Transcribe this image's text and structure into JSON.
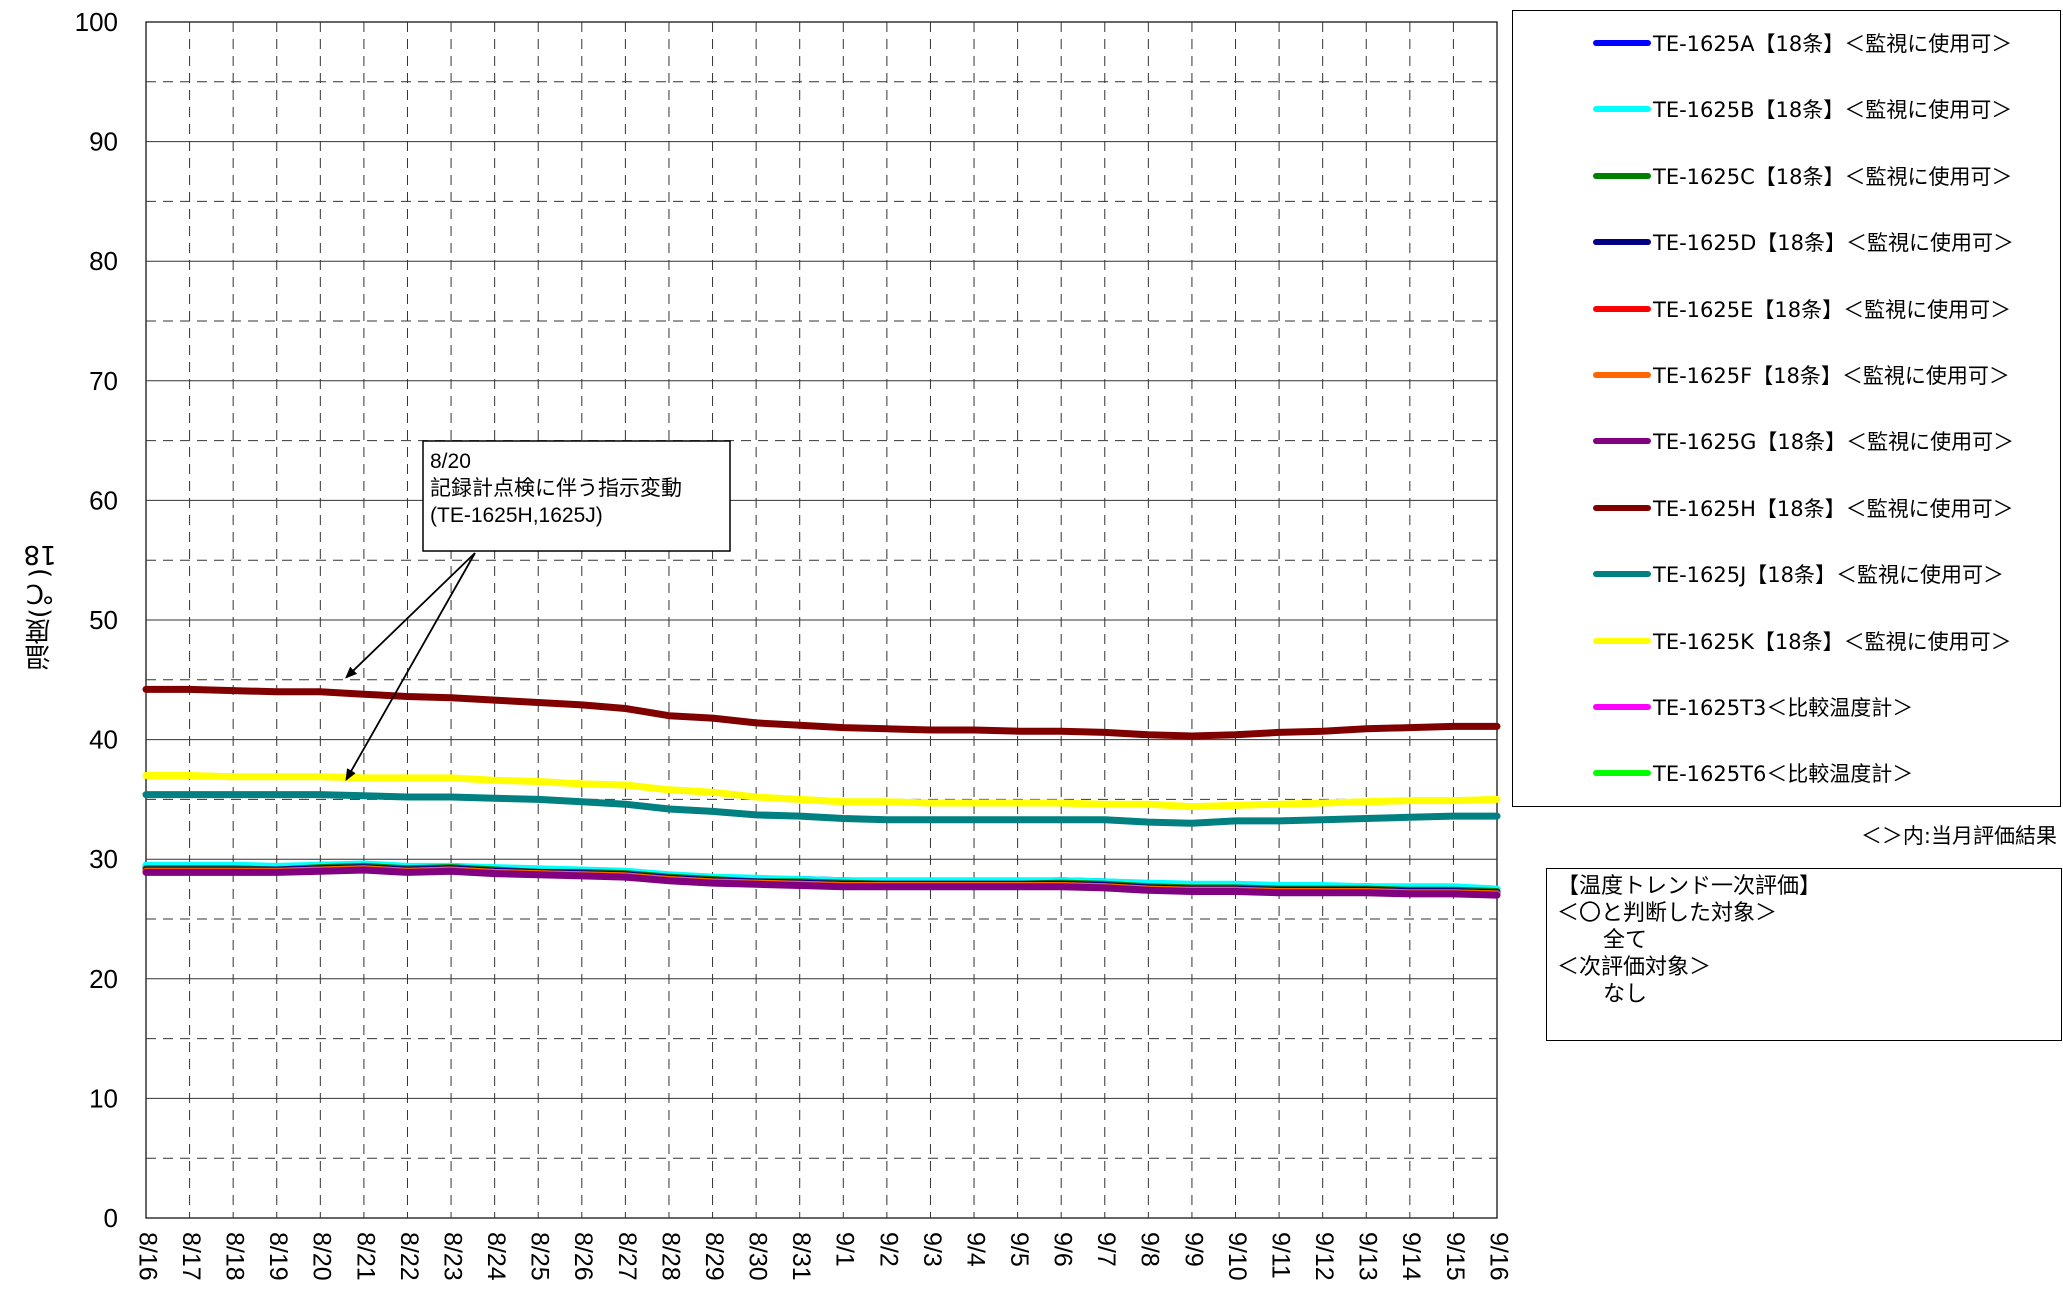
{
  "chart_data": {
    "type": "line",
    "ylabel_top": "18",
    "ylabel": "温度(℃)",
    "ylim": [
      0,
      100
    ],
    "yticks": [
      0,
      10,
      20,
      30,
      40,
      50,
      60,
      70,
      80,
      90,
      100
    ],
    "x_dates": [
      "8/16",
      "8/17",
      "8/18",
      "8/19",
      "8/20",
      "8/21",
      "8/22",
      "8/23",
      "8/24",
      "8/25",
      "8/26",
      "8/27",
      "8/28",
      "8/29",
      "8/30",
      "8/31",
      "9/1",
      "9/2",
      "9/3",
      "9/4",
      "9/5",
      "9/6",
      "9/7",
      "9/8",
      "9/9",
      "9/10",
      "9/11",
      "9/12",
      "9/13",
      "9/14",
      "9/15",
      "9/16"
    ],
    "grid": true,
    "legend_position": "right",
    "series": [
      {
        "name": "TE-1625A【18条】＜監視に使用可＞",
        "color": "#0000ff",
        "values": [
          29.4,
          29.4,
          29.4,
          29.3,
          29.5,
          29.5,
          29.3,
          29.4,
          29.2,
          29.1,
          29.0,
          28.9,
          28.6,
          28.4,
          28.3,
          28.3,
          28.2,
          28.1,
          28.1,
          28.1,
          28.1,
          28.2,
          28.1,
          27.9,
          27.8,
          27.8,
          27.7,
          27.7,
          27.7,
          27.6,
          27.6,
          27.5
        ]
      },
      {
        "name": "TE-1625B【18条】＜監視に使用可＞",
        "color": "#00ffff",
        "values": [
          29.5,
          29.5,
          29.5,
          29.4,
          29.5,
          29.6,
          29.4,
          29.4,
          29.3,
          29.2,
          29.1,
          29.0,
          28.7,
          28.5,
          28.4,
          28.3,
          28.2,
          28.2,
          28.2,
          28.2,
          28.2,
          28.2,
          28.1,
          28.0,
          27.9,
          27.9,
          27.8,
          27.8,
          27.7,
          27.7,
          27.7,
          27.5
        ]
      },
      {
        "name": "TE-1625C【18条】＜監視に使用可＞",
        "color": "#008000",
        "values": [
          29.2,
          29.2,
          29.2,
          29.1,
          29.3,
          29.4,
          29.2,
          29.3,
          29.1,
          28.9,
          28.9,
          28.8,
          28.5,
          28.3,
          28.1,
          28.1,
          28.0,
          27.9,
          27.9,
          27.9,
          27.9,
          28.0,
          27.9,
          27.7,
          27.6,
          27.6,
          27.5,
          27.5,
          27.5,
          27.4,
          27.4,
          27.3
        ]
      },
      {
        "name": "TE-1625D【18条】＜監視に使用可＞",
        "color": "#000080",
        "values": [
          29.1,
          29.1,
          29.1,
          29.1,
          29.2,
          29.3,
          29.1,
          29.2,
          29.0,
          28.9,
          28.8,
          28.7,
          28.4,
          28.2,
          28.1,
          28.0,
          27.9,
          27.9,
          27.9,
          27.9,
          27.9,
          27.9,
          27.8,
          27.6,
          27.5,
          27.5,
          27.4,
          27.4,
          27.4,
          27.3,
          27.3,
          27.2
        ]
      },
      {
        "name": "TE-1625E【18条】＜監視に使用可＞",
        "color": "#ff0000",
        "values": [
          29.0,
          29.0,
          29.0,
          29.0,
          29.1,
          29.2,
          29.0,
          29.1,
          28.9,
          28.8,
          28.7,
          28.6,
          28.3,
          28.1,
          28.0,
          27.9,
          27.8,
          27.8,
          27.8,
          27.8,
          27.8,
          27.8,
          27.7,
          27.5,
          27.4,
          27.4,
          27.3,
          27.3,
          27.3,
          27.2,
          27.2,
          27.1
        ]
      },
      {
        "name": "TE-1625F【18条】＜監視に使用可＞",
        "color": "#ff6600",
        "values": [
          29.0,
          29.0,
          29.0,
          29.0,
          29.1,
          29.2,
          29.0,
          29.1,
          28.9,
          28.8,
          28.7,
          28.6,
          28.3,
          28.1,
          28.0,
          27.9,
          27.8,
          27.8,
          27.8,
          27.8,
          27.8,
          27.8,
          27.7,
          27.5,
          27.4,
          27.4,
          27.3,
          27.3,
          27.3,
          27.2,
          27.2,
          27.1
        ]
      },
      {
        "name": "TE-1625G【18条】＜監視に使用可＞",
        "color": "#800080",
        "values": [
          28.9,
          28.9,
          28.9,
          28.9,
          29.0,
          29.1,
          28.9,
          29.0,
          28.8,
          28.7,
          28.6,
          28.5,
          28.2,
          28.0,
          27.9,
          27.8,
          27.7,
          27.7,
          27.7,
          27.7,
          27.7,
          27.7,
          27.6,
          27.4,
          27.3,
          27.3,
          27.2,
          27.2,
          27.2,
          27.1,
          27.1,
          27.0
        ]
      },
      {
        "name": "TE-1625H【18条】＜監視に使用可＞",
        "color": "#800000",
        "values": [
          44.2,
          44.2,
          44.1,
          44.0,
          44.0,
          43.8,
          43.6,
          43.5,
          43.3,
          43.1,
          42.9,
          42.6,
          42.0,
          41.8,
          41.4,
          41.2,
          41.0,
          40.9,
          40.8,
          40.8,
          40.7,
          40.7,
          40.6,
          40.4,
          40.3,
          40.4,
          40.6,
          40.7,
          40.9,
          41.0,
          41.1,
          41.1
        ]
      },
      {
        "name": "TE-1625J【18条】＜監視に使用可＞",
        "color": "#008080",
        "values": [
          35.4,
          35.4,
          35.4,
          35.4,
          35.4,
          35.3,
          35.2,
          35.2,
          35.1,
          35.0,
          34.8,
          34.6,
          34.2,
          34.0,
          33.7,
          33.6,
          33.4,
          33.3,
          33.3,
          33.3,
          33.3,
          33.3,
          33.3,
          33.1,
          33.0,
          33.2,
          33.2,
          33.3,
          33.4,
          33.5,
          33.6,
          33.6
        ]
      },
      {
        "name": "TE-1625K【18条】＜監視に使用可＞",
        "color": "#ffff00",
        "values": [
          37.0,
          37.0,
          36.9,
          36.9,
          36.9,
          36.8,
          36.8,
          36.8,
          36.6,
          36.5,
          36.3,
          36.2,
          35.8,
          35.6,
          35.2,
          35.0,
          34.8,
          34.8,
          34.7,
          34.7,
          34.7,
          34.7,
          34.6,
          34.6,
          34.4,
          34.5,
          34.6,
          34.7,
          34.8,
          34.9,
          34.9,
          35.0
        ]
      },
      {
        "name": "TE-1625T3＜比較温度計＞",
        "color": "#ff00ff",
        "values": []
      },
      {
        "name": "TE-1625T6＜比較温度計＞",
        "color": "#00ff00",
        "values": []
      }
    ],
    "annotation": {
      "lines": [
        "8/20",
        "記録計点検に伴う指示変動",
        "(TE-1625H,1625J)"
      ],
      "arrow_targets": [
        {
          "x_date": "8/20",
          "x_offset_days": 0.6,
          "series": "TE-1625H【18条】＜監視に使用可＞"
        },
        {
          "x_date": "8/20",
          "x_offset_days": 0.6,
          "series": "TE-1625J【18条】＜監視に使用可＞"
        }
      ]
    }
  },
  "legend_note": "＜＞内:当月評価結果",
  "evaluation": {
    "title": "【温度トレンド一次評価】",
    "ok_heading": "＜〇と判断した対象＞",
    "ok_value": "全て",
    "next_heading": "＜次評価対象＞",
    "next_value": "なし"
  }
}
